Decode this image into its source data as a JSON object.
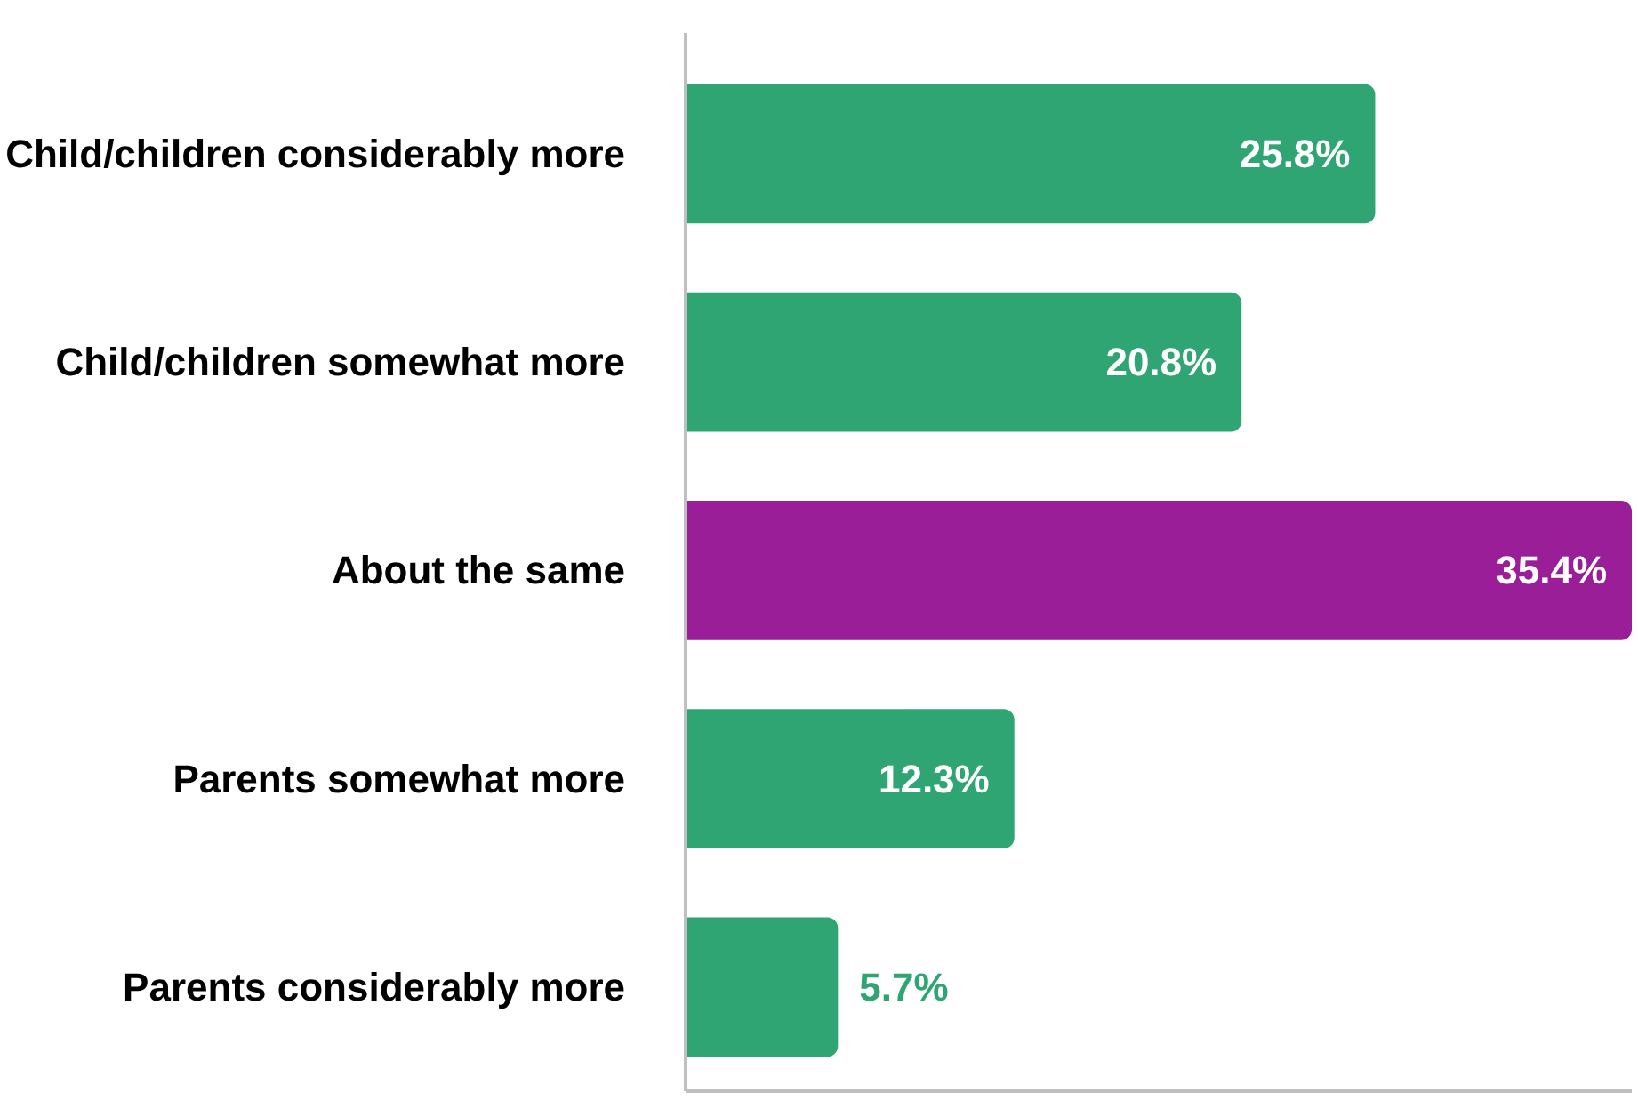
{
  "chart_data": {
    "type": "bar",
    "orientation": "horizontal",
    "categories": [
      "Child/children considerably more",
      "Child/children somewhat more",
      "About the same",
      "Parents somewhat more",
      "Parents considerably more"
    ],
    "values": [
      25.8,
      20.8,
      35.4,
      12.3,
      5.7
    ],
    "colors": [
      "#2fa574",
      "#2fa574",
      "#9a1e98",
      "#2fa574",
      "#2fa574"
    ],
    "value_labels": [
      "25.8%",
      "20.8%",
      "35.4%",
      "12.3%",
      "5.7%"
    ],
    "grid": false
  }
}
